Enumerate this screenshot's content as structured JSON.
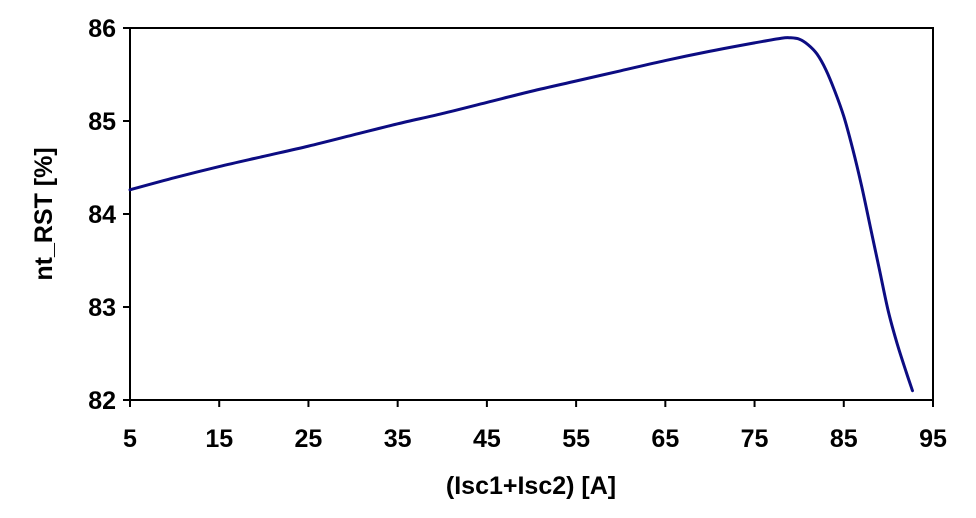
{
  "chart_data": {
    "type": "line",
    "title": "",
    "xlabel": "(Isc1+Isc2) [A]",
    "ylabel": "nt_RST [%]",
    "xlim": [
      5,
      95
    ],
    "ylim": [
      82,
      86
    ],
    "x_ticks": [
      5,
      15,
      25,
      35,
      45,
      55,
      65,
      75,
      85,
      95
    ],
    "y_ticks": [
      82,
      83,
      84,
      85,
      86
    ],
    "x_tick_labels": [
      "5",
      "15",
      "25",
      "35",
      "45",
      "55",
      "65",
      "75",
      "85",
      "95"
    ],
    "y_tick_labels": [
      "82",
      "83",
      "84",
      "85",
      "86"
    ],
    "grid": false,
    "legend": "none",
    "series": [
      {
        "color": "#0c0c82",
        "x": [
          5,
          10,
          15,
          20,
          25,
          30,
          35,
          40,
          45,
          50,
          55,
          60,
          65,
          70,
          75,
          78,
          79,
          80,
          81,
          82,
          83,
          84,
          85,
          86,
          87,
          88,
          89,
          90,
          91,
          92,
          92.7
        ],
        "y": [
          84.26,
          84.39,
          84.51,
          84.62,
          84.73,
          84.85,
          84.97,
          85.08,
          85.2,
          85.32,
          85.43,
          85.54,
          85.65,
          85.75,
          85.84,
          85.89,
          85.895,
          85.88,
          85.82,
          85.72,
          85.55,
          85.32,
          85.05,
          84.7,
          84.3,
          83.85,
          83.4,
          82.95,
          82.6,
          82.3,
          82.1
        ]
      }
    ]
  }
}
